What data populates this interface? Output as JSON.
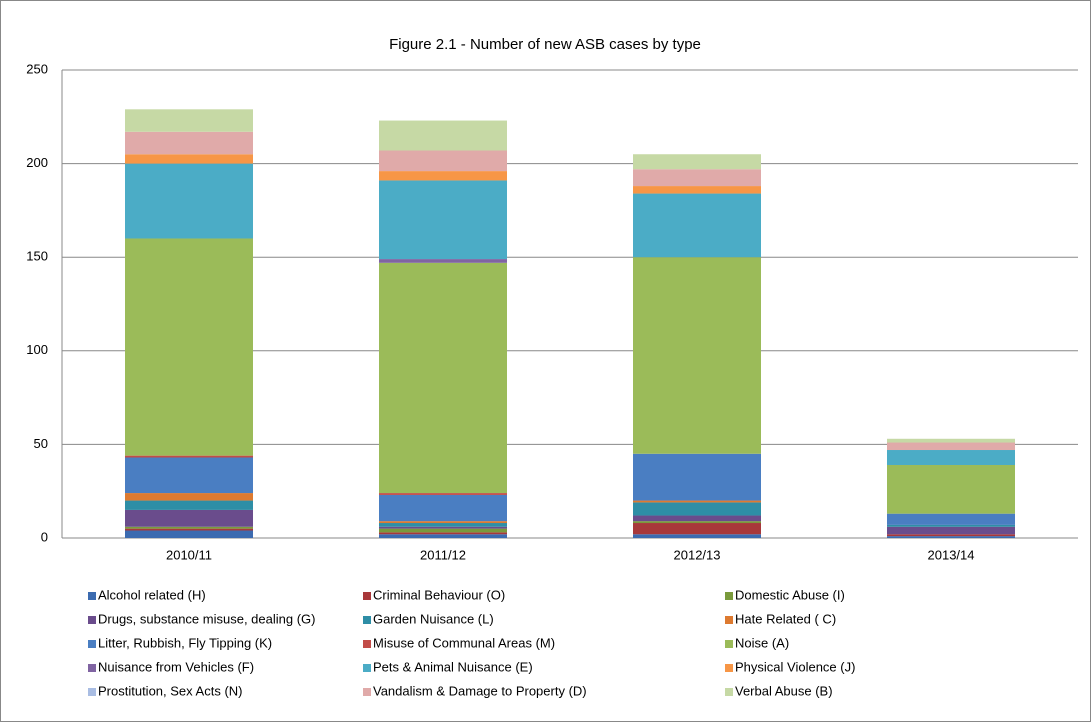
{
  "chart_data": {
    "type": "stacked_bar",
    "title": "Figure 2.1 - Number of new ASB cases by type",
    "categories": [
      "2010/11",
      "2011/12",
      "2012/13",
      "2013/14"
    ],
    "series": [
      {
        "name": "Alcohol related (H)",
        "color": "#3c6bb0",
        "values": [
          4,
          2,
          2,
          1
        ]
      },
      {
        "name": "Criminal Behaviour (O)",
        "color": "#a8383a",
        "values": [
          1,
          1,
          6,
          1
        ]
      },
      {
        "name": "Domestic Abuse (I)",
        "color": "#7a9a3c",
        "values": [
          1,
          2,
          1,
          0
        ]
      },
      {
        "name": "Drugs, substance misuse, dealing (G)",
        "color": "#6a4c8c",
        "values": [
          9,
          1,
          3,
          4
        ]
      },
      {
        "name": "Garden Nuisance (L)",
        "color": "#2e8ea6",
        "values": [
          5,
          2,
          7,
          1
        ]
      },
      {
        "name": "Hate Related ( C)",
        "color": "#dd7a30",
        "values": [
          4,
          1,
          1,
          0
        ]
      },
      {
        "name": "Litter, Rubbish, Fly Tipping (K)",
        "color": "#4a7ec2",
        "values": [
          19,
          14,
          25,
          6
        ]
      },
      {
        "name": "Misuse of Communal Areas (M)",
        "color": "#c24c48",
        "values": [
          1,
          1,
          0,
          0
        ]
      },
      {
        "name": "Noise (A)",
        "color": "#9bbb59",
        "values": [
          116,
          123,
          105,
          26
        ]
      },
      {
        "name": "Nuisance from Vehicles (F)",
        "color": "#8064a2",
        "values": [
          0,
          2,
          0,
          0
        ]
      },
      {
        "name": "Pets & Animal Nuisance (E)",
        "color": "#4bacc6",
        "values": [
          40,
          42,
          34,
          8
        ]
      },
      {
        "name": "Physical Violence (J)",
        "color": "#f79646",
        "values": [
          5,
          5,
          4,
          0
        ]
      },
      {
        "name": "Prostitution, Sex Acts (N)",
        "color": "#a9bde3",
        "values": [
          0,
          0,
          0,
          0
        ]
      },
      {
        "name": "Vandalism & Damage to Property (D)",
        "color": "#e0aaa9",
        "values": [
          12,
          11,
          9,
          4
        ]
      },
      {
        "name": "Verbal Abuse (B)",
        "color": "#c6d9a5",
        "values": [
          12,
          16,
          8,
          2
        ]
      }
    ],
    "ylim": [
      0,
      250
    ],
    "yticks": [
      0,
      50,
      100,
      150,
      200,
      250
    ],
    "grid": true
  }
}
